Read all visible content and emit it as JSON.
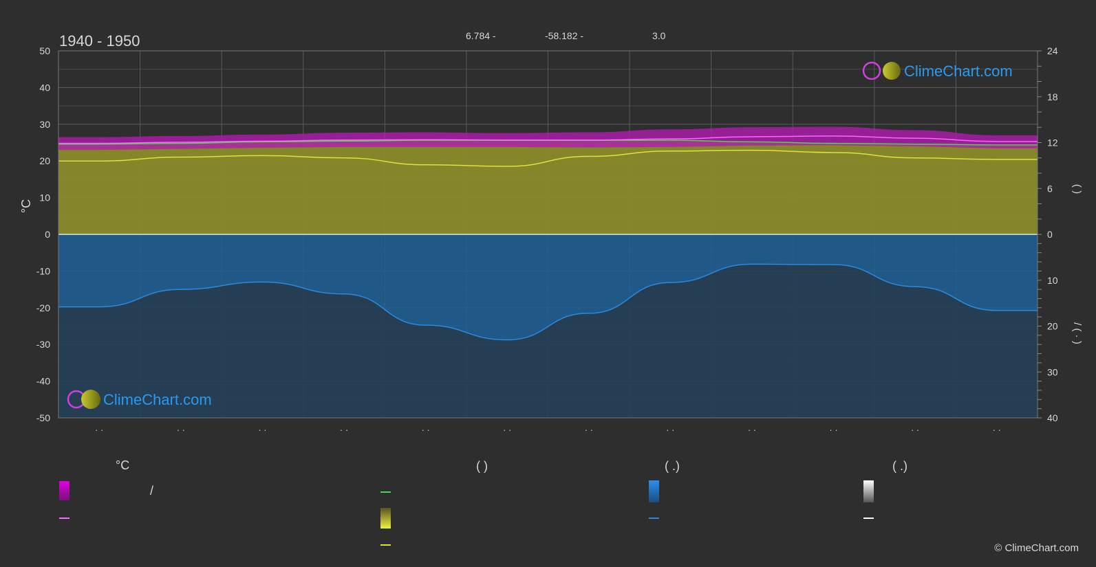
{
  "header": {
    "period": "1940 - 1950",
    "lat": "6.784 -",
    "lon": "-58.182 -",
    "elev": "3.0"
  },
  "branding": {
    "logo_text": "ClimeChart.com",
    "copyright": "© ClimeChart.com"
  },
  "axes": {
    "left_label": "°C",
    "right_label_upper": "(    )",
    "right_label_lower": "/  (  ·  )",
    "left_ticks": [
      "50",
      "40",
      "30",
      "20",
      "10",
      "0",
      "-10",
      "-20",
      "-30",
      "-40",
      "-50"
    ],
    "right_ticks_upper": [
      "24",
      "18",
      "12",
      "6",
      "0"
    ],
    "right_ticks_lower": [
      "10",
      "20",
      "30",
      "40"
    ],
    "month_labels": [
      "· ·",
      "· ·",
      "· ·",
      "· ·",
      "· ·",
      "· ·",
      "· ·",
      "· ·",
      "· ·",
      "· ·",
      "· ·",
      "· ·"
    ]
  },
  "legend": {
    "temperature_heading": "°C",
    "sun_heading": "(          )",
    "rain_heading": "(    .)",
    "snow_heading": "(    .)",
    "temp_slash": "/"
  },
  "colors": {
    "background": "#2e2e2e",
    "temp_band": "#c21ec2",
    "mean_temp": "#ff66ff",
    "daylight": "#44dd44",
    "sunshine_band": "#8f8f2e",
    "sunshine_line": "#e0e040",
    "rain_band": "#1e6aa8",
    "rain_line": "#2a8ae0",
    "snow": "#e0e0e0",
    "grid": "#5a5a5a"
  },
  "chart_data": {
    "type": "area",
    "categories": [
      "1",
      "2",
      "3",
      "4",
      "5",
      "6",
      "7",
      "8",
      "9",
      "10",
      "11",
      "12"
    ],
    "ylim_temp": [
      -50,
      50
    ],
    "ylim_hours": [
      0,
      24
    ],
    "ylim_precip_mm": [
      0,
      40
    ],
    "series": [
      {
        "key": "mean_temp",
        "values": [
          24.8,
          25.1,
          25.4,
          25.7,
          25.8,
          25.7,
          25.7,
          26.0,
          26.6,
          26.8,
          26.2,
          25.3
        ]
      },
      {
        "key": "temp_max",
        "values": [
          26.5,
          26.8,
          27.2,
          27.7,
          27.8,
          27.6,
          27.8,
          28.6,
          29.2,
          29.3,
          28.4,
          27.0
        ]
      },
      {
        "key": "temp_min",
        "values": [
          23.0,
          23.3,
          23.6,
          23.8,
          23.8,
          23.8,
          23.7,
          23.8,
          24.2,
          24.3,
          24.0,
          23.4
        ]
      },
      {
        "key": "daylight_hours",
        "values": [
          11.8,
          11.9,
          12.1,
          12.2,
          12.3,
          12.3,
          12.3,
          12.3,
          12.1,
          11.9,
          11.8,
          11.7
        ]
      },
      {
        "key": "sunshine_hours",
        "values": [
          9.6,
          10.1,
          10.3,
          10.0,
          9.1,
          8.9,
          10.2,
          10.9,
          11.0,
          10.7,
          10.0,
          9.8
        ]
      },
      {
        "key": "precip_mm",
        "values": [
          15.8,
          12.0,
          10.4,
          13.0,
          19.8,
          23.0,
          17.2,
          10.5,
          6.5,
          6.6,
          11.4,
          16.6
        ]
      }
    ]
  }
}
